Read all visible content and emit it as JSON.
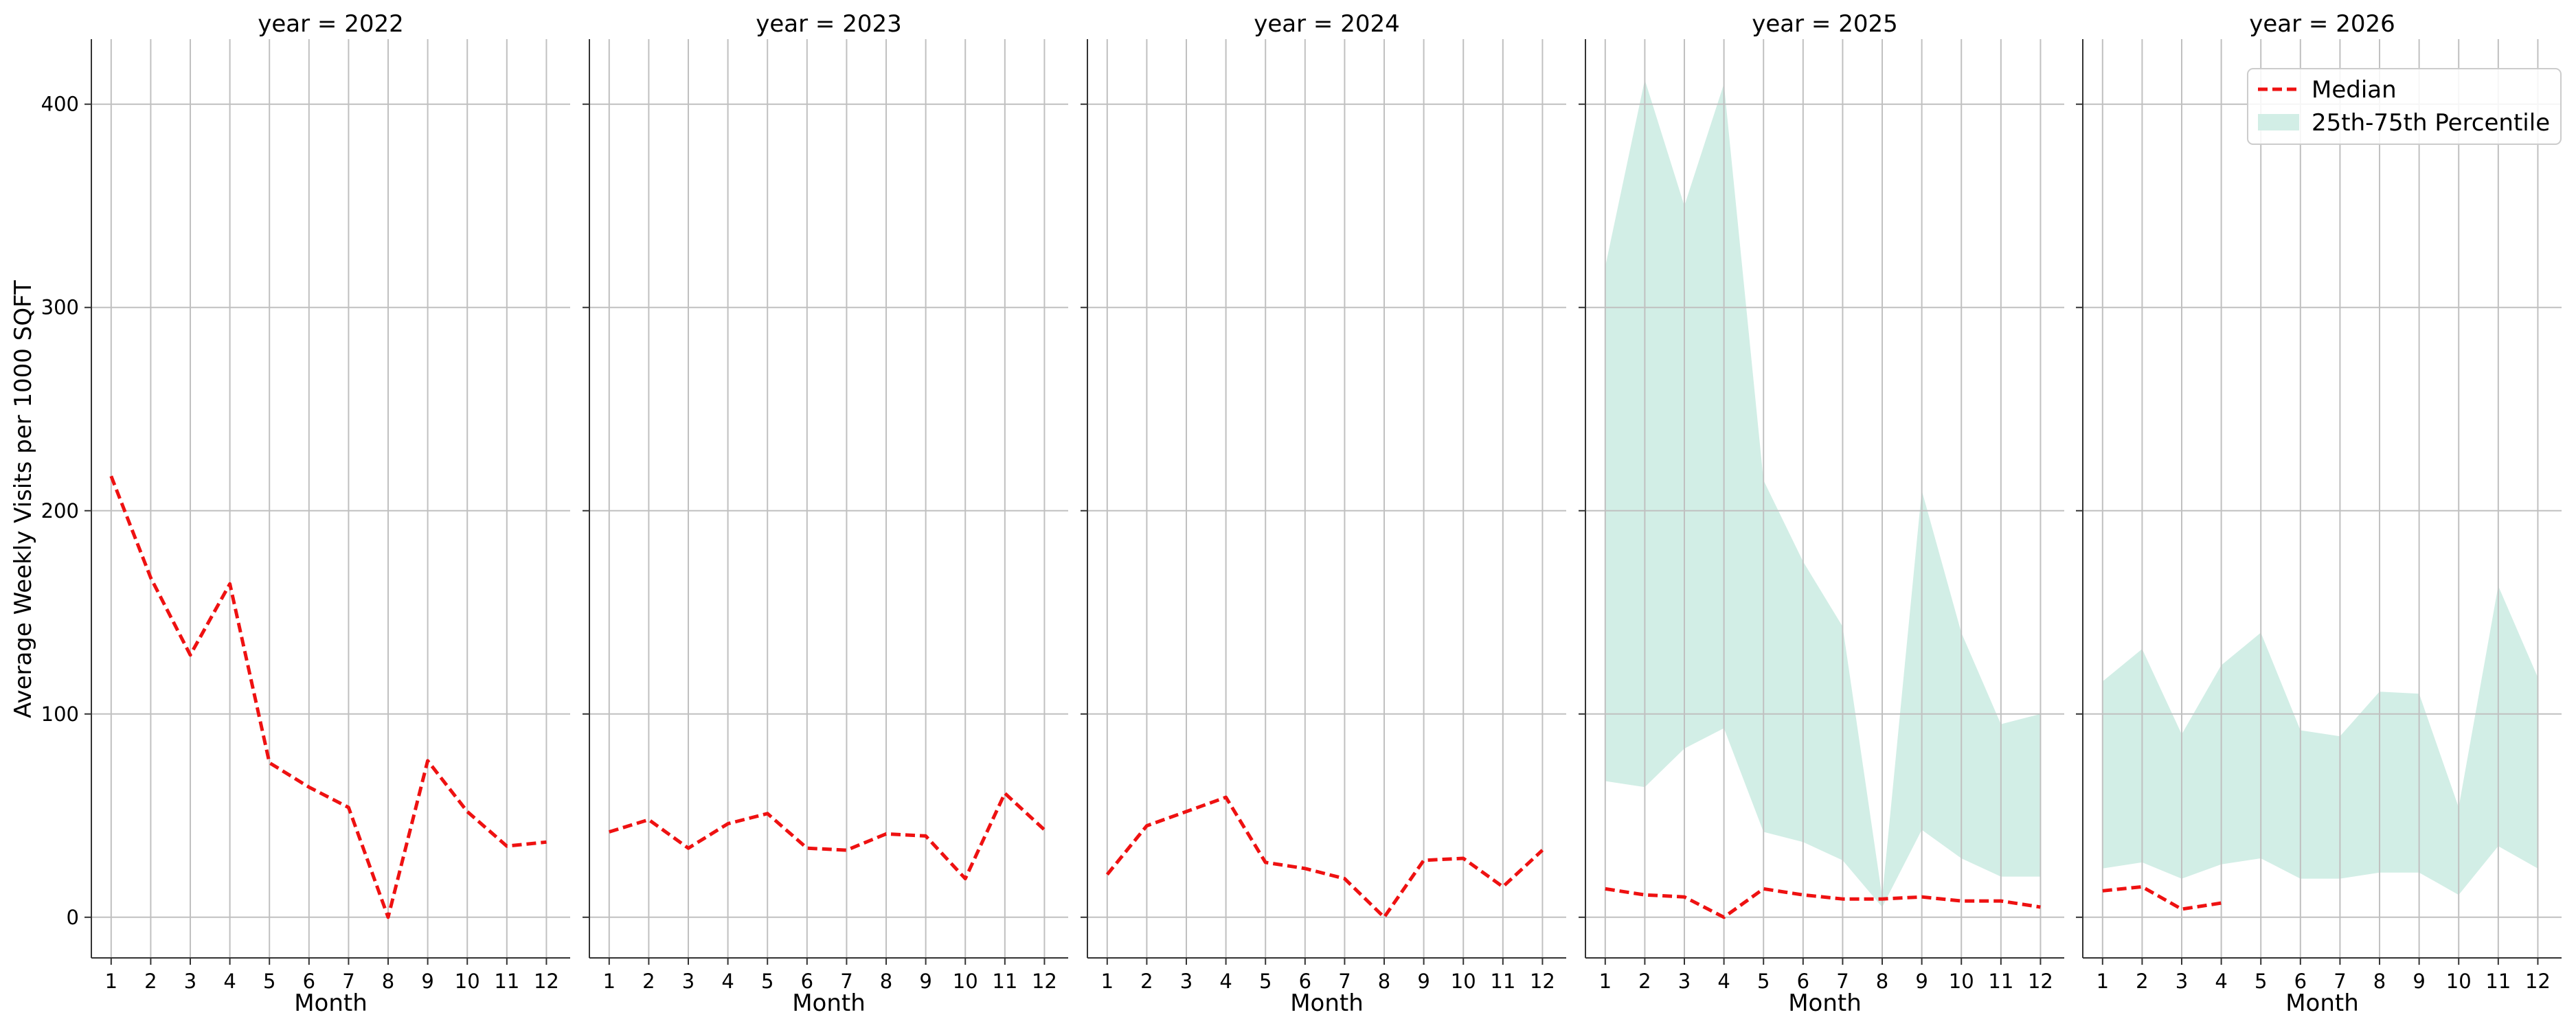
{
  "chart_data": {
    "type": "line",
    "facet_by": "year",
    "ylabel": "Average Weekly Visits per 1000 SQFT",
    "xlabel": "Month",
    "x_ticks": [
      1,
      2,
      3,
      4,
      5,
      6,
      7,
      8,
      9,
      10,
      11,
      12
    ],
    "y_ticks": [
      0,
      100,
      200,
      300,
      400
    ],
    "ylim": [
      -20,
      432
    ],
    "xlim": [
      0.5,
      12.6
    ],
    "grid": true,
    "legend_position": "top-right",
    "legend": {
      "median_label": "Median",
      "band_label": "25th-75th Percentile"
    },
    "colors": {
      "median": "#ee1111",
      "band": "#d2eee6",
      "grid": "#c0c0c0",
      "axis": "#333333"
    },
    "panels": [
      {
        "title": "year = 2022",
        "median": [
          [
            1,
            217
          ],
          [
            2,
            167
          ],
          [
            3,
            129
          ],
          [
            4,
            164
          ],
          [
            5,
            76
          ],
          [
            6,
            64
          ],
          [
            7,
            54
          ],
          [
            8,
            0
          ],
          [
            9,
            77
          ],
          [
            10,
            52
          ],
          [
            11,
            35
          ],
          [
            12,
            37
          ]
        ],
        "band": []
      },
      {
        "title": "year = 2023",
        "median": [
          [
            1,
            42
          ],
          [
            2,
            48
          ],
          [
            3,
            34
          ],
          [
            4,
            46
          ],
          [
            5,
            51
          ],
          [
            6,
            34
          ],
          [
            7,
            33
          ],
          [
            8,
            41
          ],
          [
            9,
            40
          ],
          [
            10,
            19
          ],
          [
            11,
            61
          ],
          [
            12,
            43
          ]
        ],
        "band": []
      },
      {
        "title": "year = 2024",
        "median": [
          [
            1,
            21
          ],
          [
            2,
            45
          ],
          [
            3,
            52
          ],
          [
            4,
            59
          ],
          [
            5,
            27
          ],
          [
            6,
            24
          ],
          [
            7,
            19
          ],
          [
            8,
            0
          ],
          [
            9,
            28
          ],
          [
            10,
            29
          ],
          [
            11,
            15
          ],
          [
            12,
            33
          ]
        ],
        "band": []
      },
      {
        "title": "year = 2025",
        "median": [
          [
            1,
            14
          ],
          [
            2,
            11
          ],
          [
            3,
            10
          ],
          [
            4,
            0
          ],
          [
            5,
            14
          ],
          [
            6,
            11
          ],
          [
            7,
            9
          ],
          [
            8,
            9
          ],
          [
            9,
            10
          ],
          [
            10,
            8
          ],
          [
            11,
            8
          ],
          [
            12,
            5
          ]
        ],
        "band": [
          [
            1,
            67,
            320
          ],
          [
            2,
            64,
            412
          ],
          [
            3,
            83,
            350
          ],
          [
            4,
            93,
            410
          ],
          [
            5,
            42,
            215
          ],
          [
            6,
            37,
            175
          ],
          [
            7,
            28,
            143
          ],
          [
            8,
            5,
            10
          ],
          [
            9,
            43,
            210
          ],
          [
            10,
            29,
            140
          ],
          [
            11,
            20,
            95
          ],
          [
            12,
            20,
            100
          ]
        ]
      },
      {
        "title": "year = 2026",
        "median": [
          [
            1,
            13
          ],
          [
            2,
            15
          ],
          [
            3,
            4
          ],
          [
            4,
            7
          ]
        ],
        "band": [
          [
            1,
            24,
            116
          ],
          [
            2,
            27,
            132
          ],
          [
            3,
            19,
            90
          ],
          [
            4,
            26,
            124
          ],
          [
            5,
            29,
            140
          ],
          [
            6,
            19,
            92
          ],
          [
            7,
            19,
            89
          ],
          [
            8,
            22,
            111
          ],
          [
            9,
            22,
            110
          ],
          [
            10,
            11,
            54
          ],
          [
            11,
            35,
            163
          ],
          [
            12,
            24,
            118
          ]
        ]
      }
    ]
  }
}
